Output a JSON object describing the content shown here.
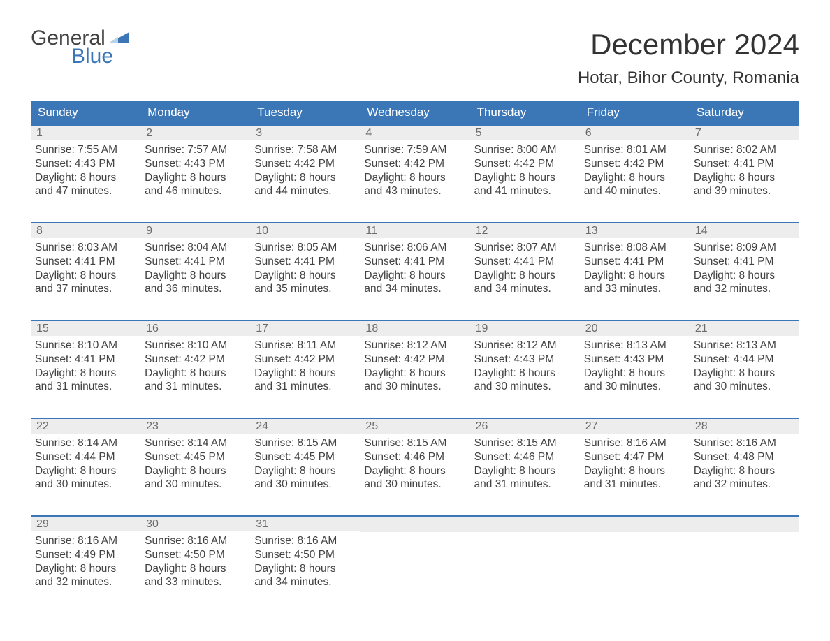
{
  "brand": {
    "line1": "General",
    "line2": "Blue",
    "flag_color": "#3b77b7"
  },
  "title": "December 2024",
  "location": "Hotar, Bihor County, Romania",
  "colors": {
    "header_bg": "#3b77b7",
    "header_text": "#ffffff",
    "daynum_bg": "#ededed",
    "daynum_text": "#6b6b6b",
    "body_text": "#424242",
    "week_border": "#3b77b7",
    "page_bg": "#ffffff"
  },
  "typography": {
    "title_fontsize": 42,
    "location_fontsize": 24,
    "dayhead_fontsize": 17,
    "daynum_fontsize": 16,
    "body_fontsize": 15.5,
    "font_family": "Arial"
  },
  "day_headers": [
    "Sunday",
    "Monday",
    "Tuesday",
    "Wednesday",
    "Thursday",
    "Friday",
    "Saturday"
  ],
  "weeks": [
    [
      {
        "n": "1",
        "sunrise": "7:55 AM",
        "sunset": "4:43 PM",
        "dl1": "8 hours",
        "dl2": "and 47 minutes."
      },
      {
        "n": "2",
        "sunrise": "7:57 AM",
        "sunset": "4:43 PM",
        "dl1": "8 hours",
        "dl2": "and 46 minutes."
      },
      {
        "n": "3",
        "sunrise": "7:58 AM",
        "sunset": "4:42 PM",
        "dl1": "8 hours",
        "dl2": "and 44 minutes."
      },
      {
        "n": "4",
        "sunrise": "7:59 AM",
        "sunset": "4:42 PM",
        "dl1": "8 hours",
        "dl2": "and 43 minutes."
      },
      {
        "n": "5",
        "sunrise": "8:00 AM",
        "sunset": "4:42 PM",
        "dl1": "8 hours",
        "dl2": "and 41 minutes."
      },
      {
        "n": "6",
        "sunrise": "8:01 AM",
        "sunset": "4:42 PM",
        "dl1": "8 hours",
        "dl2": "and 40 minutes."
      },
      {
        "n": "7",
        "sunrise": "8:02 AM",
        "sunset": "4:41 PM",
        "dl1": "8 hours",
        "dl2": "and 39 minutes."
      }
    ],
    [
      {
        "n": "8",
        "sunrise": "8:03 AM",
        "sunset": "4:41 PM",
        "dl1": "8 hours",
        "dl2": "and 37 minutes."
      },
      {
        "n": "9",
        "sunrise": "8:04 AM",
        "sunset": "4:41 PM",
        "dl1": "8 hours",
        "dl2": "and 36 minutes."
      },
      {
        "n": "10",
        "sunrise": "8:05 AM",
        "sunset": "4:41 PM",
        "dl1": "8 hours",
        "dl2": "and 35 minutes."
      },
      {
        "n": "11",
        "sunrise": "8:06 AM",
        "sunset": "4:41 PM",
        "dl1": "8 hours",
        "dl2": "and 34 minutes."
      },
      {
        "n": "12",
        "sunrise": "8:07 AM",
        "sunset": "4:41 PM",
        "dl1": "8 hours",
        "dl2": "and 34 minutes."
      },
      {
        "n": "13",
        "sunrise": "8:08 AM",
        "sunset": "4:41 PM",
        "dl1": "8 hours",
        "dl2": "and 33 minutes."
      },
      {
        "n": "14",
        "sunrise": "8:09 AM",
        "sunset": "4:41 PM",
        "dl1": "8 hours",
        "dl2": "and 32 minutes."
      }
    ],
    [
      {
        "n": "15",
        "sunrise": "8:10 AM",
        "sunset": "4:41 PM",
        "dl1": "8 hours",
        "dl2": "and 31 minutes."
      },
      {
        "n": "16",
        "sunrise": "8:10 AM",
        "sunset": "4:42 PM",
        "dl1": "8 hours",
        "dl2": "and 31 minutes."
      },
      {
        "n": "17",
        "sunrise": "8:11 AM",
        "sunset": "4:42 PM",
        "dl1": "8 hours",
        "dl2": "and 31 minutes."
      },
      {
        "n": "18",
        "sunrise": "8:12 AM",
        "sunset": "4:42 PM",
        "dl1": "8 hours",
        "dl2": "and 30 minutes."
      },
      {
        "n": "19",
        "sunrise": "8:12 AM",
        "sunset": "4:43 PM",
        "dl1": "8 hours",
        "dl2": "and 30 minutes."
      },
      {
        "n": "20",
        "sunrise": "8:13 AM",
        "sunset": "4:43 PM",
        "dl1": "8 hours",
        "dl2": "and 30 minutes."
      },
      {
        "n": "21",
        "sunrise": "8:13 AM",
        "sunset": "4:44 PM",
        "dl1": "8 hours",
        "dl2": "and 30 minutes."
      }
    ],
    [
      {
        "n": "22",
        "sunrise": "8:14 AM",
        "sunset": "4:44 PM",
        "dl1": "8 hours",
        "dl2": "and 30 minutes."
      },
      {
        "n": "23",
        "sunrise": "8:14 AM",
        "sunset": "4:45 PM",
        "dl1": "8 hours",
        "dl2": "and 30 minutes."
      },
      {
        "n": "24",
        "sunrise": "8:15 AM",
        "sunset": "4:45 PM",
        "dl1": "8 hours",
        "dl2": "and 30 minutes."
      },
      {
        "n": "25",
        "sunrise": "8:15 AM",
        "sunset": "4:46 PM",
        "dl1": "8 hours",
        "dl2": "and 30 minutes."
      },
      {
        "n": "26",
        "sunrise": "8:15 AM",
        "sunset": "4:46 PM",
        "dl1": "8 hours",
        "dl2": "and 31 minutes."
      },
      {
        "n": "27",
        "sunrise": "8:16 AM",
        "sunset": "4:47 PM",
        "dl1": "8 hours",
        "dl2": "and 31 minutes."
      },
      {
        "n": "28",
        "sunrise": "8:16 AM",
        "sunset": "4:48 PM",
        "dl1": "8 hours",
        "dl2": "and 32 minutes."
      }
    ],
    [
      {
        "n": "29",
        "sunrise": "8:16 AM",
        "sunset": "4:49 PM",
        "dl1": "8 hours",
        "dl2": "and 32 minutes."
      },
      {
        "n": "30",
        "sunrise": "8:16 AM",
        "sunset": "4:50 PM",
        "dl1": "8 hours",
        "dl2": "and 33 minutes."
      },
      {
        "n": "31",
        "sunrise": "8:16 AM",
        "sunset": "4:50 PM",
        "dl1": "8 hours",
        "dl2": "and 34 minutes."
      },
      null,
      null,
      null,
      null
    ]
  ],
  "labels": {
    "sunrise_prefix": "Sunrise: ",
    "sunset_prefix": "Sunset: ",
    "daylight_prefix": "Daylight: "
  }
}
